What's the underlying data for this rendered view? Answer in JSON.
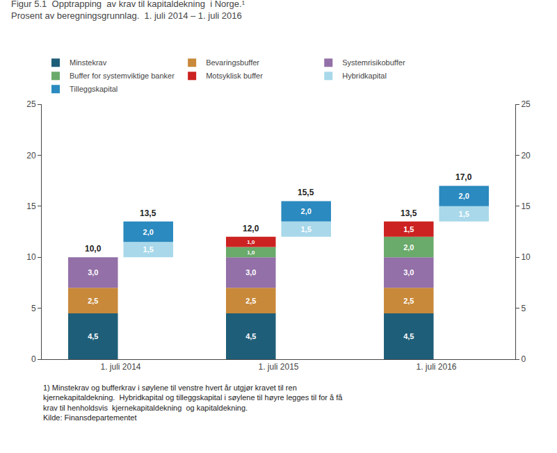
{
  "chart_data": {
    "type": "bar",
    "title": "Figur 5.1  Opptrapping  av krav til kapitaldekning  i Norge.¹",
    "subtitle": "Prosent av beregningsgrunnlag.  1. juli 2014 – 1. juli 2016",
    "categories": [
      "1. juli 2014",
      "1. juli 2015",
      "1. juli 2016"
    ],
    "stacked": true,
    "data_labels": true,
    "legend": "upper left",
    "grid": false,
    "stacks": [
      {
        "series": [
          {
            "name": "Minstekrav",
            "color": "#1e5e78",
            "values": [
              4.5,
              4.5,
              4.5
            ],
            "value_labels": [
              "4,5",
              "4,5",
              "4,5"
            ]
          },
          {
            "name": "Bevaringsbuffer",
            "color": "#c8893a",
            "values": [
              2.5,
              2.5,
              2.5
            ],
            "value_labels": [
              "2,5",
              "2,5",
              "2,5"
            ]
          },
          {
            "name": "Systemrisikobuffer",
            "color": "#9370a8",
            "values": [
              3.0,
              3.0,
              3.0
            ],
            "value_labels": [
              "3,0",
              "3,0",
              "3,0"
            ]
          },
          {
            "name": "Buffer for systemviktige banker",
            "color": "#6aaa6a",
            "values": [
              0.0,
              1.0,
              2.0
            ],
            "value_labels": [
              null,
              "1,0",
              "2,0"
            ]
          },
          {
            "name": "Motsyklisk buffer",
            "color": "#cc2222",
            "values": [
              0.0,
              1.0,
              1.5
            ],
            "value_labels": [
              null,
              "1,0",
              "1,5"
            ]
          }
        ],
        "totals": {
          "values": [
            10.0,
            12.0,
            13.5
          ],
          "value_labels": [
            "10,0",
            "12,0",
            "13,5"
          ]
        }
      },
      {
        "series": [
          {
            "name": "Hybridkapital",
            "color": "#a8d8ea",
            "values": [
              1.5,
              1.5,
              1.5
            ],
            "value_labels": [
              "1,5",
              "1,5",
              "1,5"
            ]
          },
          {
            "name": "Tilleggskapital",
            "color": "#2b8abf",
            "values": [
              2.0,
              2.0,
              2.0
            ],
            "value_labels": [
              "2,0",
              "2,0",
              "2,0"
            ]
          }
        ],
        "totals": {
          "values": [
            13.5,
            15.5,
            17.0
          ],
          "value_labels": [
            "13,5",
            "15,5",
            "17,0"
          ]
        }
      }
    ],
    "ylim": [
      0,
      25
    ],
    "yticks": [
      0,
      5,
      10,
      15,
      20,
      25
    ],
    "y2lim": [
      0,
      25
    ],
    "y2ticks": [
      0,
      5,
      10,
      15,
      20,
      25
    ],
    "annotations": [
      "1) Minstekrav og bufferkrav i søylene til venstre hvert år utgjør kravet til ren",
      "kjernekapitaldekning.  Hybridkapital og tilleggskapital i søylene til høyre legges til for å få",
      "krav til henholdsvis  kjernekapitaldekning  og kapitaldekning.",
      "Kilde: Finansdepartementet"
    ]
  }
}
